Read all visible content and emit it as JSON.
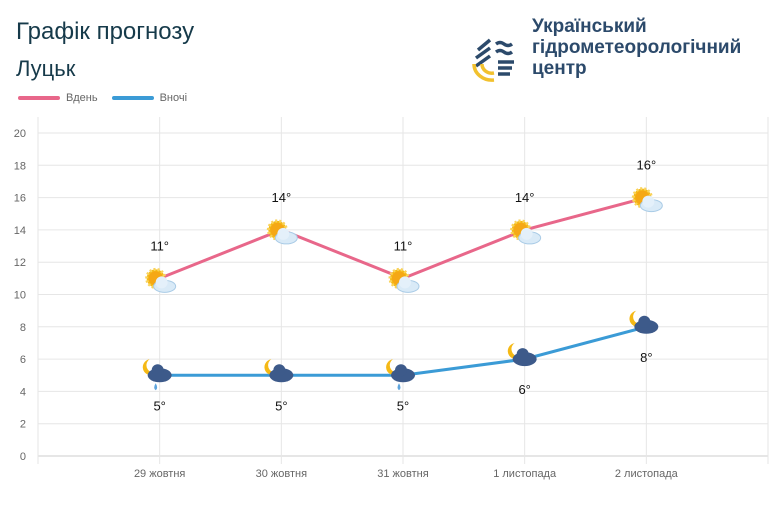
{
  "header": {
    "title": "Графік прогнозу",
    "city": "Луцьк",
    "org": [
      "Український",
      "гідрометеорологічний",
      "центр"
    ]
  },
  "chart_data": {
    "type": "line",
    "categories": [
      "29 жовтня",
      "30 жовтня",
      "31 жовтня",
      "1 листопада",
      "2 листопада"
    ],
    "series": [
      {
        "name": "Вдень",
        "color": "#e8678a",
        "values": [
          11,
          14,
          11,
          14,
          16
        ],
        "icons": [
          "sun-cloud",
          "sun-cloud",
          "sun-cloud",
          "sun-cloud",
          "sun-cloud"
        ],
        "labels": [
          "11°",
          "14°",
          "11°",
          "14°",
          "16°"
        ]
      },
      {
        "name": "Вночі",
        "color": "#3b9bd6",
        "values": [
          5,
          5,
          5,
          6,
          8
        ],
        "icons": [
          "moon-cloud-rain",
          "moon-cloud",
          "moon-cloud-rain",
          "moon-cloud",
          "moon-cloud"
        ],
        "labels": [
          "5°",
          "5°",
          "5°",
          "6°",
          "8°"
        ]
      }
    ],
    "yticks": [
      "0",
      "2",
      "4",
      "6",
      "8",
      "10",
      "12",
      "14",
      "16",
      "18",
      "20"
    ],
    "ylim": [
      0,
      20
    ],
    "grid": true,
    "legend": "top-left"
  }
}
